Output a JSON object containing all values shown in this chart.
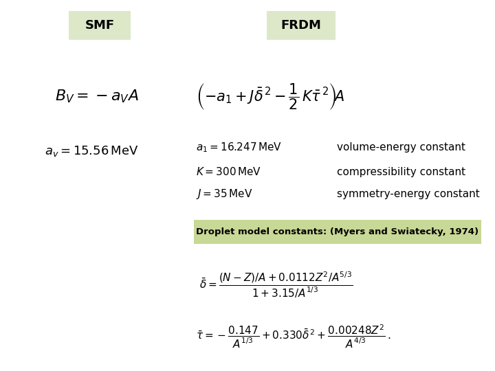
{
  "bg_color": "#ffffff",
  "smf_label": "SMF",
  "frdm_label": "FRDM",
  "header_bg": "#dce8c8",
  "droplet_box_bg": "#c8d896",
  "droplet_text": "Droplet model constants: (Myers and Swiatecky, 1974)",
  "smf_eq": "$B_V = -a_V A$",
  "smf_const": "$a_v = 15.56\\,\\mathrm{MeV}$",
  "frdm_eq": "$\\left(-a_1 + J\\bar{\\delta}^{\\,2} - \\dfrac{1}{2}\\,K\\bar{\\tau}^{\\,2}\\right)\\!A$",
  "a1_line": "$a_1 = 16.247\\,\\mathrm{MeV}$",
  "a1_desc": "volume-energy constant",
  "K_line": "$K = 300\\,\\mathrm{MeV}$",
  "K_desc": "compressibility constant",
  "J_line": "$J = 35\\,\\mathrm{MeV}$",
  "J_desc": "symmetry-energy constant",
  "delta_eq": "$\\bar{\\delta} = \\dfrac{(N-Z)/A + 0.0112Z^2/A^{5/3}}{1 + 3.15/A^{1/3}}$",
  "tau_eq": "$\\bar{\\tau} = -\\dfrac{0.147}{A^{1/3}} + 0.330\\bar{\\delta}^{\\,2} + \\dfrac{0.00248Z^2}{A^{4/3}}\\,.$"
}
